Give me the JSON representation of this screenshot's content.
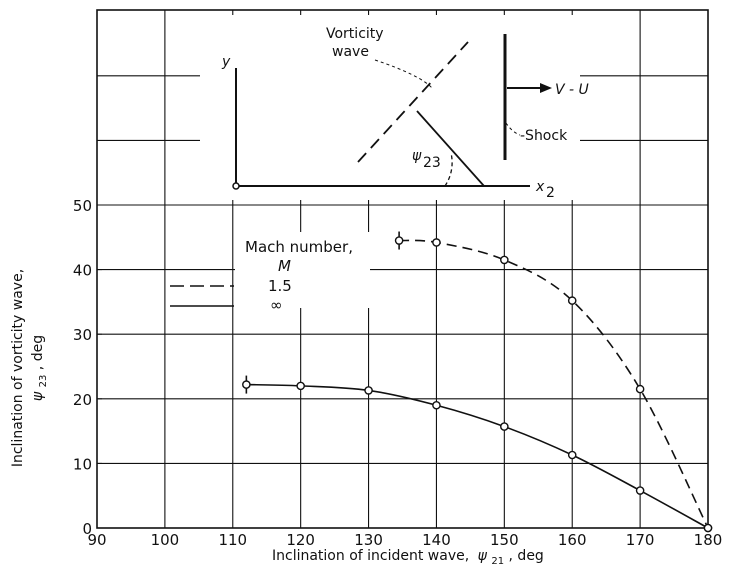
{
  "chart_data": {
    "type": "line",
    "xlabel_text": "Inclination of incident wave,",
    "xlabel_symbol": "ψ",
    "xlabel_sub": "21",
    "xlabel_unit": ", deg",
    "ylabel_line1": "Inclination of vorticity wave,",
    "ylabel_symbol": "ψ",
    "ylabel_sub": "23",
    "ylabel_unit": ", deg",
    "xlim": [
      90,
      180
    ],
    "ylim": [
      0,
      50
    ],
    "x_ticks": [
      90,
      100,
      110,
      120,
      130,
      140,
      150,
      160,
      170,
      180
    ],
    "y_ticks": [
      0,
      10,
      20,
      30,
      40,
      50
    ],
    "grid": true,
    "legend": {
      "title": "Mach number,",
      "symbol": "M",
      "entries": [
        "1.5",
        "∞"
      ]
    },
    "series": [
      {
        "name": "1.5",
        "style": "dashed",
        "x": [
          134.5,
          140,
          150,
          160,
          170,
          180
        ],
        "y": [
          44.5,
          44.2,
          41.5,
          35.2,
          21.5,
          0
        ]
      },
      {
        "name": "∞",
        "style": "solid",
        "x": [
          112,
          120,
          130,
          140,
          150,
          160,
          170,
          180
        ],
        "y": [
          22.2,
          22.0,
          21.3,
          19.0,
          15.7,
          11.3,
          5.8,
          0
        ]
      }
    ]
  },
  "sketch": {
    "y_axis": "y",
    "x_axis": "x",
    "x_axis_sub": "2",
    "vorticity_line1": "Vorticity",
    "vorticity_line2": "wave",
    "velocity_label": "V - U",
    "shock_label": "-Shock",
    "angle_symbol": "ψ",
    "angle_sub": "23"
  }
}
